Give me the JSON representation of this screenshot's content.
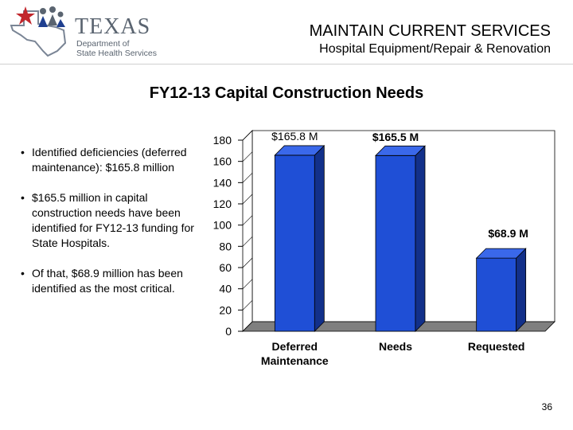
{
  "logo": {
    "main": "TEXAS",
    "sub_line1": "Department of",
    "sub_line2": "State Health Services"
  },
  "header": {
    "title": "MAINTAIN CURRENT SERVICES",
    "subtitle": "Hospital Equipment/Repair & Renovation"
  },
  "bullets": [
    "Identified deficiencies (deferred maintenance): $165.8 million",
    "$165.5 million in capital construction needs have been identified for FY12-13 funding for State Hospitals.",
    "Of that, $68.9 million has been identified as the most critical."
  ],
  "chart_data": {
    "type": "bar",
    "title": "FY12-13 Capital Construction Needs",
    "categories": [
      "Deferred Maintenance",
      "Needs",
      "Requested"
    ],
    "values": [
      165.8,
      165.5,
      68.9
    ],
    "data_labels": [
      "$165.8 M",
      "$165.5 M",
      "$68.9 M"
    ],
    "ylim": [
      0,
      180
    ],
    "yticks": [
      0,
      20,
      40,
      60,
      80,
      100,
      120,
      140,
      160,
      180
    ],
    "xlabel": "",
    "ylabel": "",
    "grid": false,
    "style": "3d",
    "bar_color": "#1f4fd6",
    "bar_side_color": "#12308a",
    "floor_color": "#7f7f7f"
  },
  "page_number": "36"
}
